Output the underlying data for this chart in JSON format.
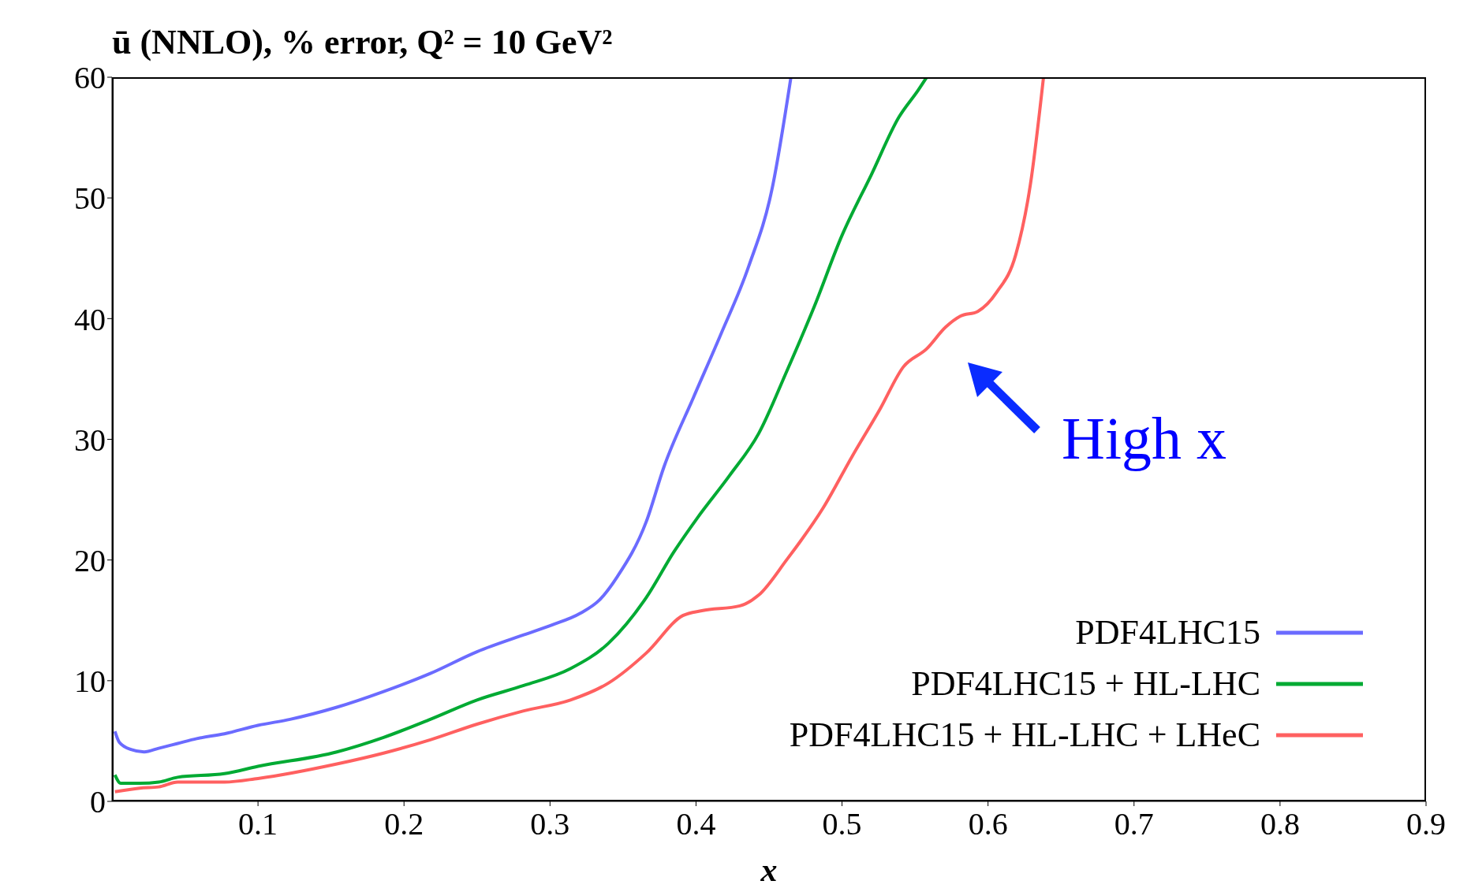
{
  "chart_data": {
    "type": "line",
    "title": "ū (NNLO), % error, Q² = 10 GeV²",
    "xlabel": "x",
    "xlim": [
      0,
      0.9
    ],
    "xticks": [
      0.1,
      0.2,
      0.3,
      0.4,
      0.5,
      0.6,
      0.7,
      0.8,
      0.9
    ],
    "ylim": [
      0,
      60
    ],
    "yticks": [
      0,
      10,
      20,
      30,
      40,
      50,
      60
    ],
    "grid": false,
    "legend": "bottom right",
    "marker": "none",
    "line_style": "solid",
    "annotations": [
      "High x"
    ],
    "series": [
      {
        "name": "PDF4LHC15",
        "color": "#6b6bff",
        "x": [
          0.002,
          0.005,
          0.013,
          0.022,
          0.032,
          0.045,
          0.058,
          0.077,
          0.1,
          0.122,
          0.154,
          0.186,
          0.218,
          0.25,
          0.282,
          0.301,
          0.321,
          0.334,
          0.346,
          0.366,
          0.378,
          0.398,
          0.417,
          0.436,
          0.452,
          0.465
        ],
        "values": [
          5.8,
          4.9,
          4.3,
          4.1,
          4.4,
          4.8,
          5.2,
          5.6,
          6.3,
          6.8,
          7.8,
          9.1,
          10.6,
          12.4,
          13.8,
          14.6,
          15.6,
          16.7,
          18.6,
          23.2,
          27.7,
          33.4,
          38.7,
          44.3,
          50.7,
          60
        ]
      },
      {
        "name": "PDF4LHC15 + HL-LHC",
        "color": "#00aa33",
        "x": [
          0.002,
          0.006,
          0.019,
          0.032,
          0.045,
          0.077,
          0.1,
          0.154,
          0.186,
          0.218,
          0.25,
          0.282,
          0.314,
          0.34,
          0.366,
          0.385,
          0.401,
          0.423,
          0.443,
          0.462,
          0.481,
          0.5,
          0.52,
          0.539,
          0.552,
          0.558
        ],
        "values": [
          2.2,
          1.5,
          1.5,
          1.6,
          2.0,
          2.3,
          2.9,
          4.1,
          5.3,
          6.8,
          8.4,
          9.6,
          11.0,
          13.1,
          16.9,
          20.7,
          23.5,
          27.0,
          30.5,
          35.6,
          41.0,
          46.9,
          51.9,
          56.7,
          58.9,
          60
        ]
      },
      {
        "name": "PDF4LHC15 + HL-LHC + LHeC",
        "color": "#ff6060",
        "x": [
          0.002,
          0.019,
          0.032,
          0.045,
          0.077,
          0.1,
          0.154,
          0.186,
          0.218,
          0.25,
          0.282,
          0.314,
          0.34,
          0.366,
          0.391,
          0.404,
          0.43,
          0.443,
          0.462,
          0.487,
          0.507,
          0.526,
          0.542,
          0.558,
          0.571,
          0.581,
          0.593,
          0.606,
          0.619,
          0.629,
          0.638
        ],
        "values": [
          0.8,
          1.1,
          1.2,
          1.6,
          1.6,
          1.9,
          3.1,
          4.0,
          5.1,
          6.4,
          7.5,
          8.4,
          9.8,
          12.3,
          15.4,
          15.8,
          16.2,
          17.1,
          20.0,
          24.3,
          28.6,
          32.5,
          36.0,
          37.5,
          39.3,
          40.2,
          40.6,
          42.2,
          45.3,
          51.1,
          60
        ]
      }
    ]
  }
}
